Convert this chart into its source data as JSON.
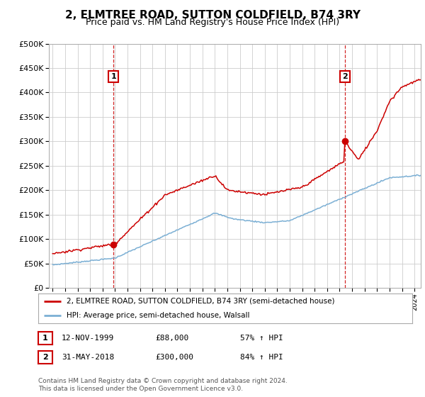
{
  "title": "2, ELMTREE ROAD, SUTTON COLDFIELD, B74 3RY",
  "subtitle": "Price paid vs. HM Land Registry's House Price Index (HPI)",
  "ylabel_ticks": [
    "£0",
    "£50K",
    "£100K",
    "£150K",
    "£200K",
    "£250K",
    "£300K",
    "£350K",
    "£400K",
    "£450K",
    "£500K"
  ],
  "ytick_values": [
    0,
    50000,
    100000,
    150000,
    200000,
    250000,
    300000,
    350000,
    400000,
    450000,
    500000
  ],
  "ylim": [
    0,
    500000
  ],
  "xlim_start": 1994.7,
  "xlim_end": 2024.5,
  "sale1": {
    "date_num": 1999.87,
    "price": 88000,
    "label": "1",
    "date_str": "12-NOV-1999",
    "pct": "57% ↑ HPI"
  },
  "sale2": {
    "date_num": 2018.42,
    "price": 300000,
    "label": "2",
    "date_str": "31-MAY-2018",
    "pct": "84% ↑ HPI"
  },
  "legend_label_red": "2, ELMTREE ROAD, SUTTON COLDFIELD, B74 3RY (semi-detached house)",
  "legend_label_blue": "HPI: Average price, semi-detached house, Walsall",
  "footer": "Contains HM Land Registry data © Crown copyright and database right 2024.\nThis data is licensed under the Open Government Licence v3.0.",
  "red_color": "#cc0000",
  "blue_color": "#7bafd4",
  "bg_color": "#ffffff",
  "grid_color": "#cccccc",
  "title_fontsize": 11,
  "subtitle_fontsize": 9
}
